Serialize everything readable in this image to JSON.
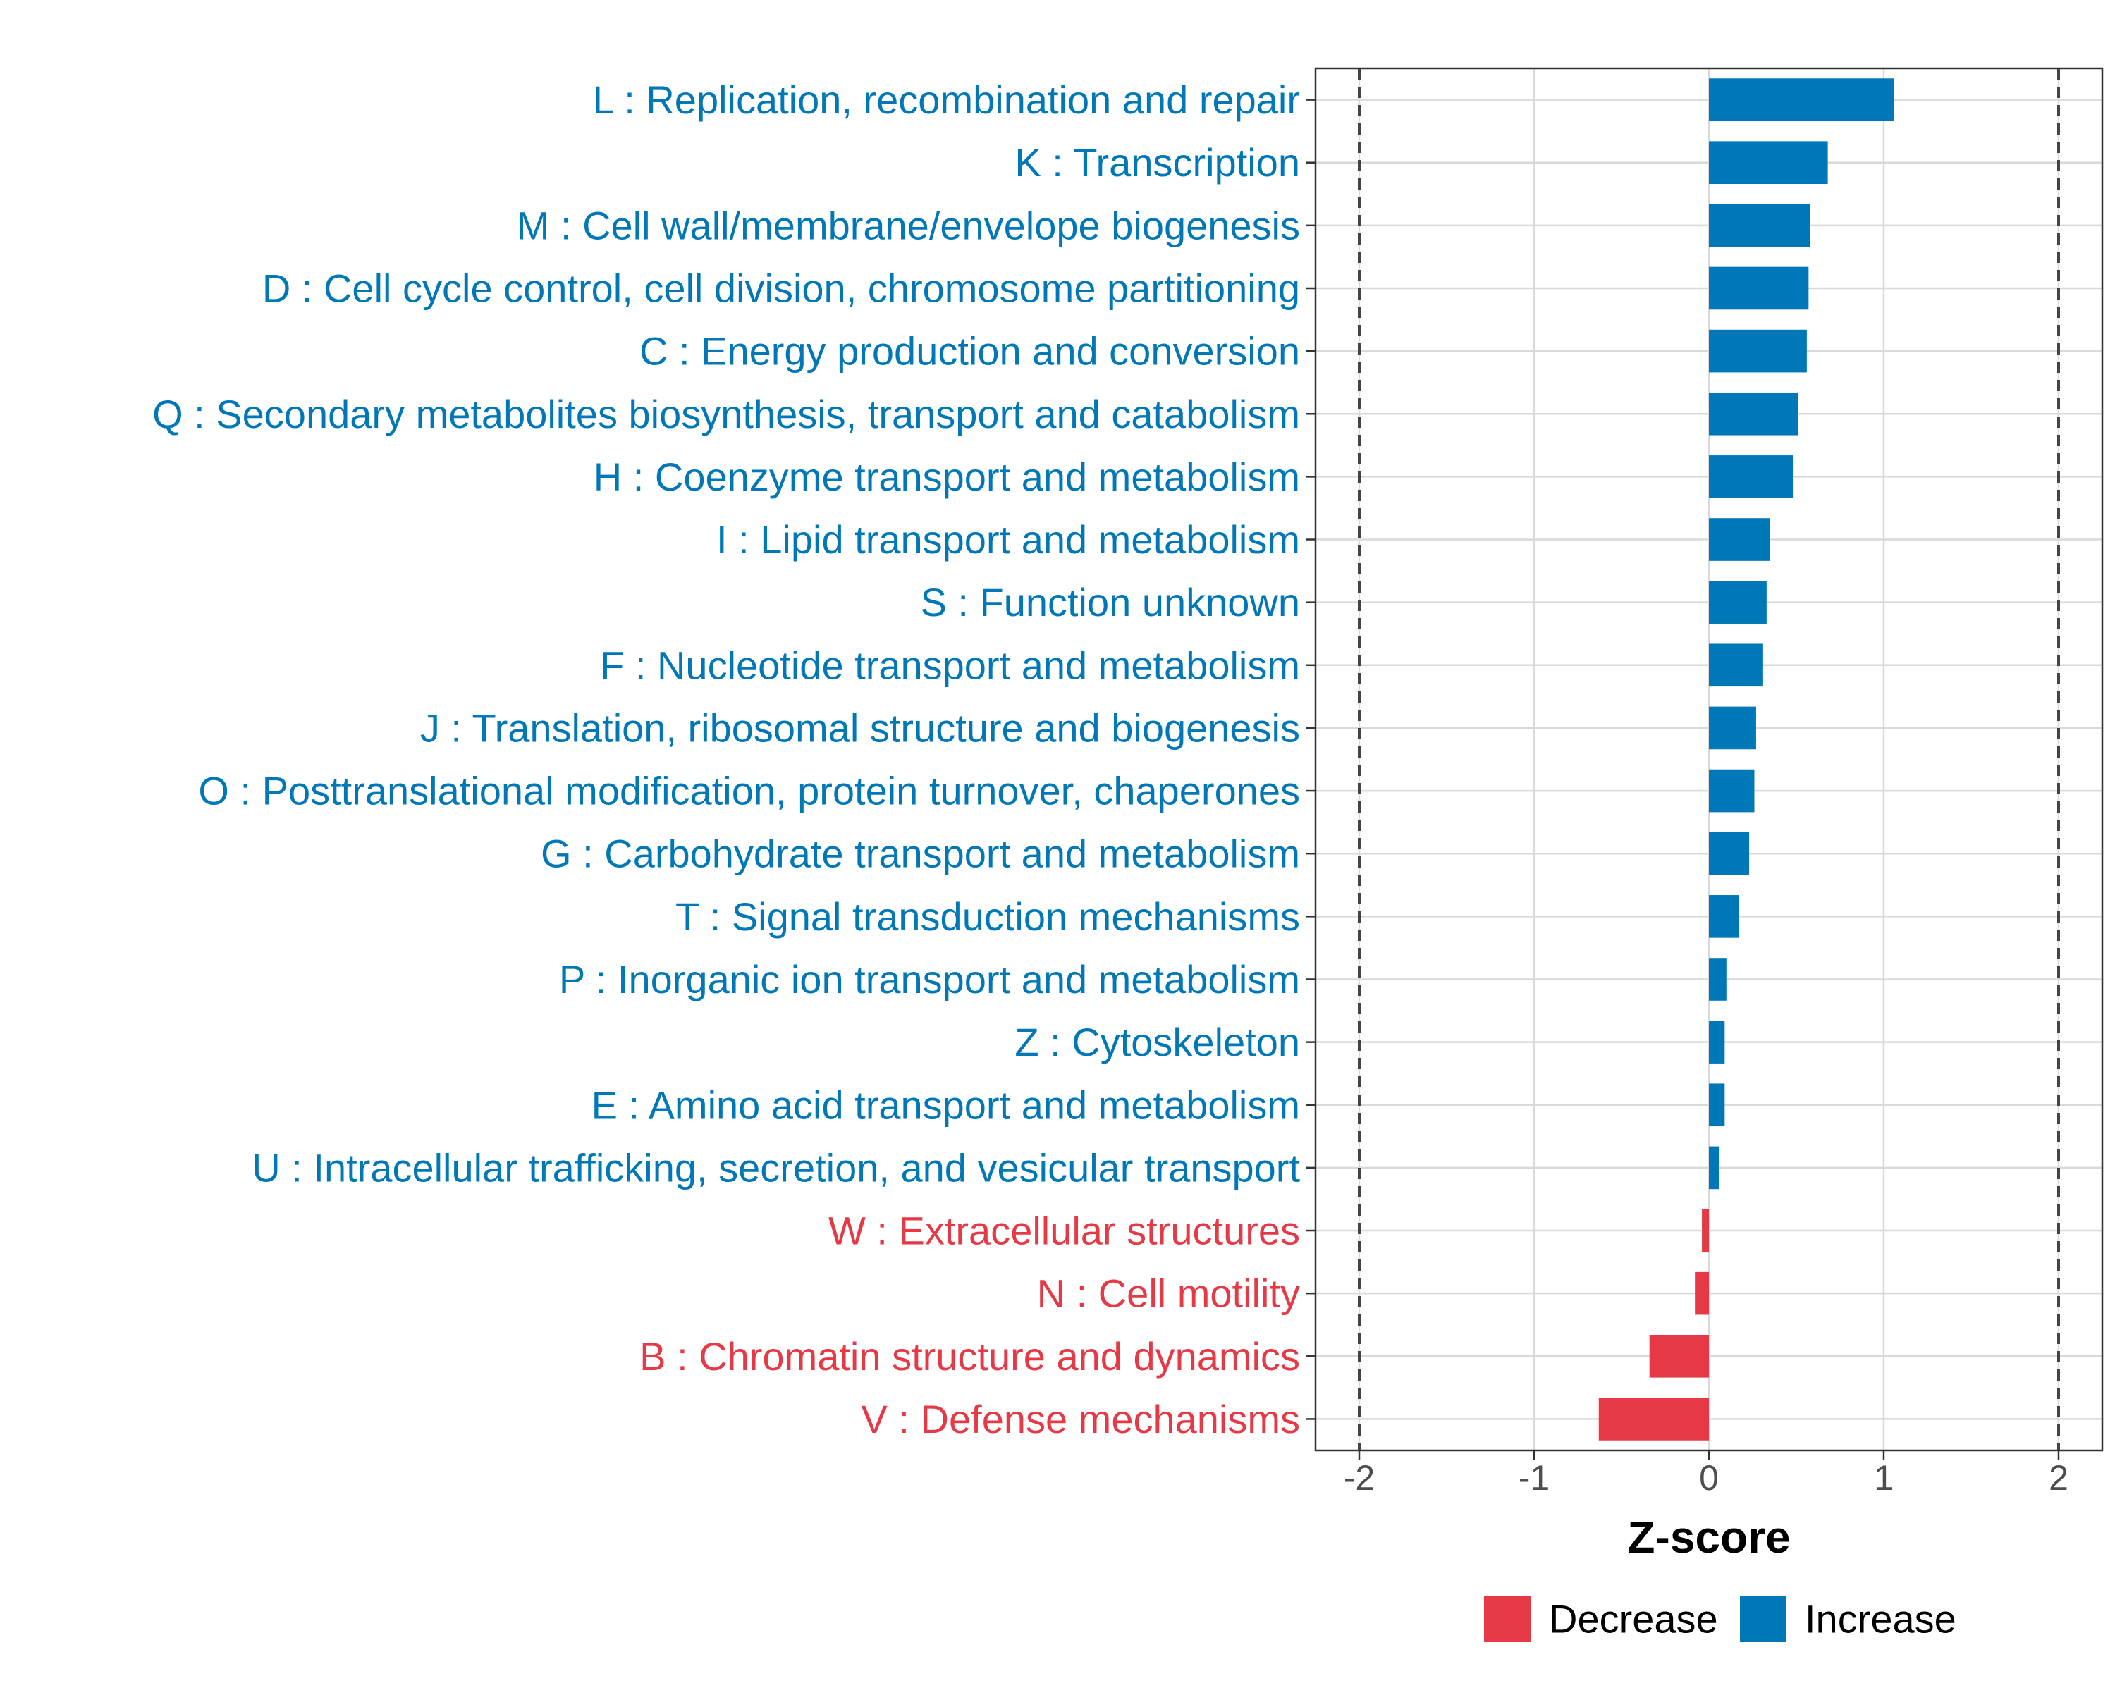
{
  "chart_data": {
    "type": "bar",
    "orientation": "horizontal",
    "xlabel": "Z-score",
    "xlim": [
      -2.25,
      2.25
    ],
    "xticks": [
      -2,
      -1,
      0,
      1,
      2
    ],
    "xtick_labels": [
      "-2",
      "-1",
      "0",
      "1",
      "2"
    ],
    "reference_lines": [
      -2,
      2
    ],
    "grid": true,
    "colors": {
      "Decrease": "#E63946",
      "Increase": "#0077B6"
    },
    "legend": {
      "position": "bottom",
      "entries": [
        {
          "label": "Decrease",
          "color": "#E63946"
        },
        {
          "label": "Increase",
          "color": "#0077B6"
        }
      ]
    },
    "categories": [
      "L : Replication, recombination and repair",
      "K : Transcription",
      "M : Cell wall/membrane/envelope biogenesis",
      "D : Cell cycle control, cell division, chromosome partitioning",
      "C : Energy production and conversion",
      "Q : Secondary metabolites biosynthesis, transport and catabolism",
      "H : Coenzyme transport and metabolism",
      "I : Lipid transport and metabolism",
      "S : Function unknown",
      "F : Nucleotide transport and metabolism",
      "J : Translation, ribosomal structure and biogenesis",
      "O : Posttranslational modification, protein turnover, chaperones",
      "G : Carbohydrate transport and metabolism",
      "T : Signal transduction mechanisms",
      "P : Inorganic ion transport and metabolism",
      "Z : Cytoskeleton",
      "E : Amino acid transport and metabolism",
      "U : Intracellular trafficking, secretion, and vesicular transport",
      "W : Extracellular structures",
      "N : Cell motility",
      "B : Chromatin structure and dynamics",
      "V : Defense mechanisms"
    ],
    "values": [
      1.06,
      0.68,
      0.58,
      0.57,
      0.56,
      0.51,
      0.48,
      0.35,
      0.33,
      0.31,
      0.27,
      0.26,
      0.23,
      0.17,
      0.1,
      0.09,
      0.09,
      0.06,
      -0.04,
      -0.08,
      -0.34,
      -0.63
    ],
    "direction": [
      "Increase",
      "Increase",
      "Increase",
      "Increase",
      "Increase",
      "Increase",
      "Increase",
      "Increase",
      "Increase",
      "Increase",
      "Increase",
      "Increase",
      "Increase",
      "Increase",
      "Increase",
      "Increase",
      "Increase",
      "Increase",
      "Decrease",
      "Decrease",
      "Decrease",
      "Decrease"
    ]
  }
}
